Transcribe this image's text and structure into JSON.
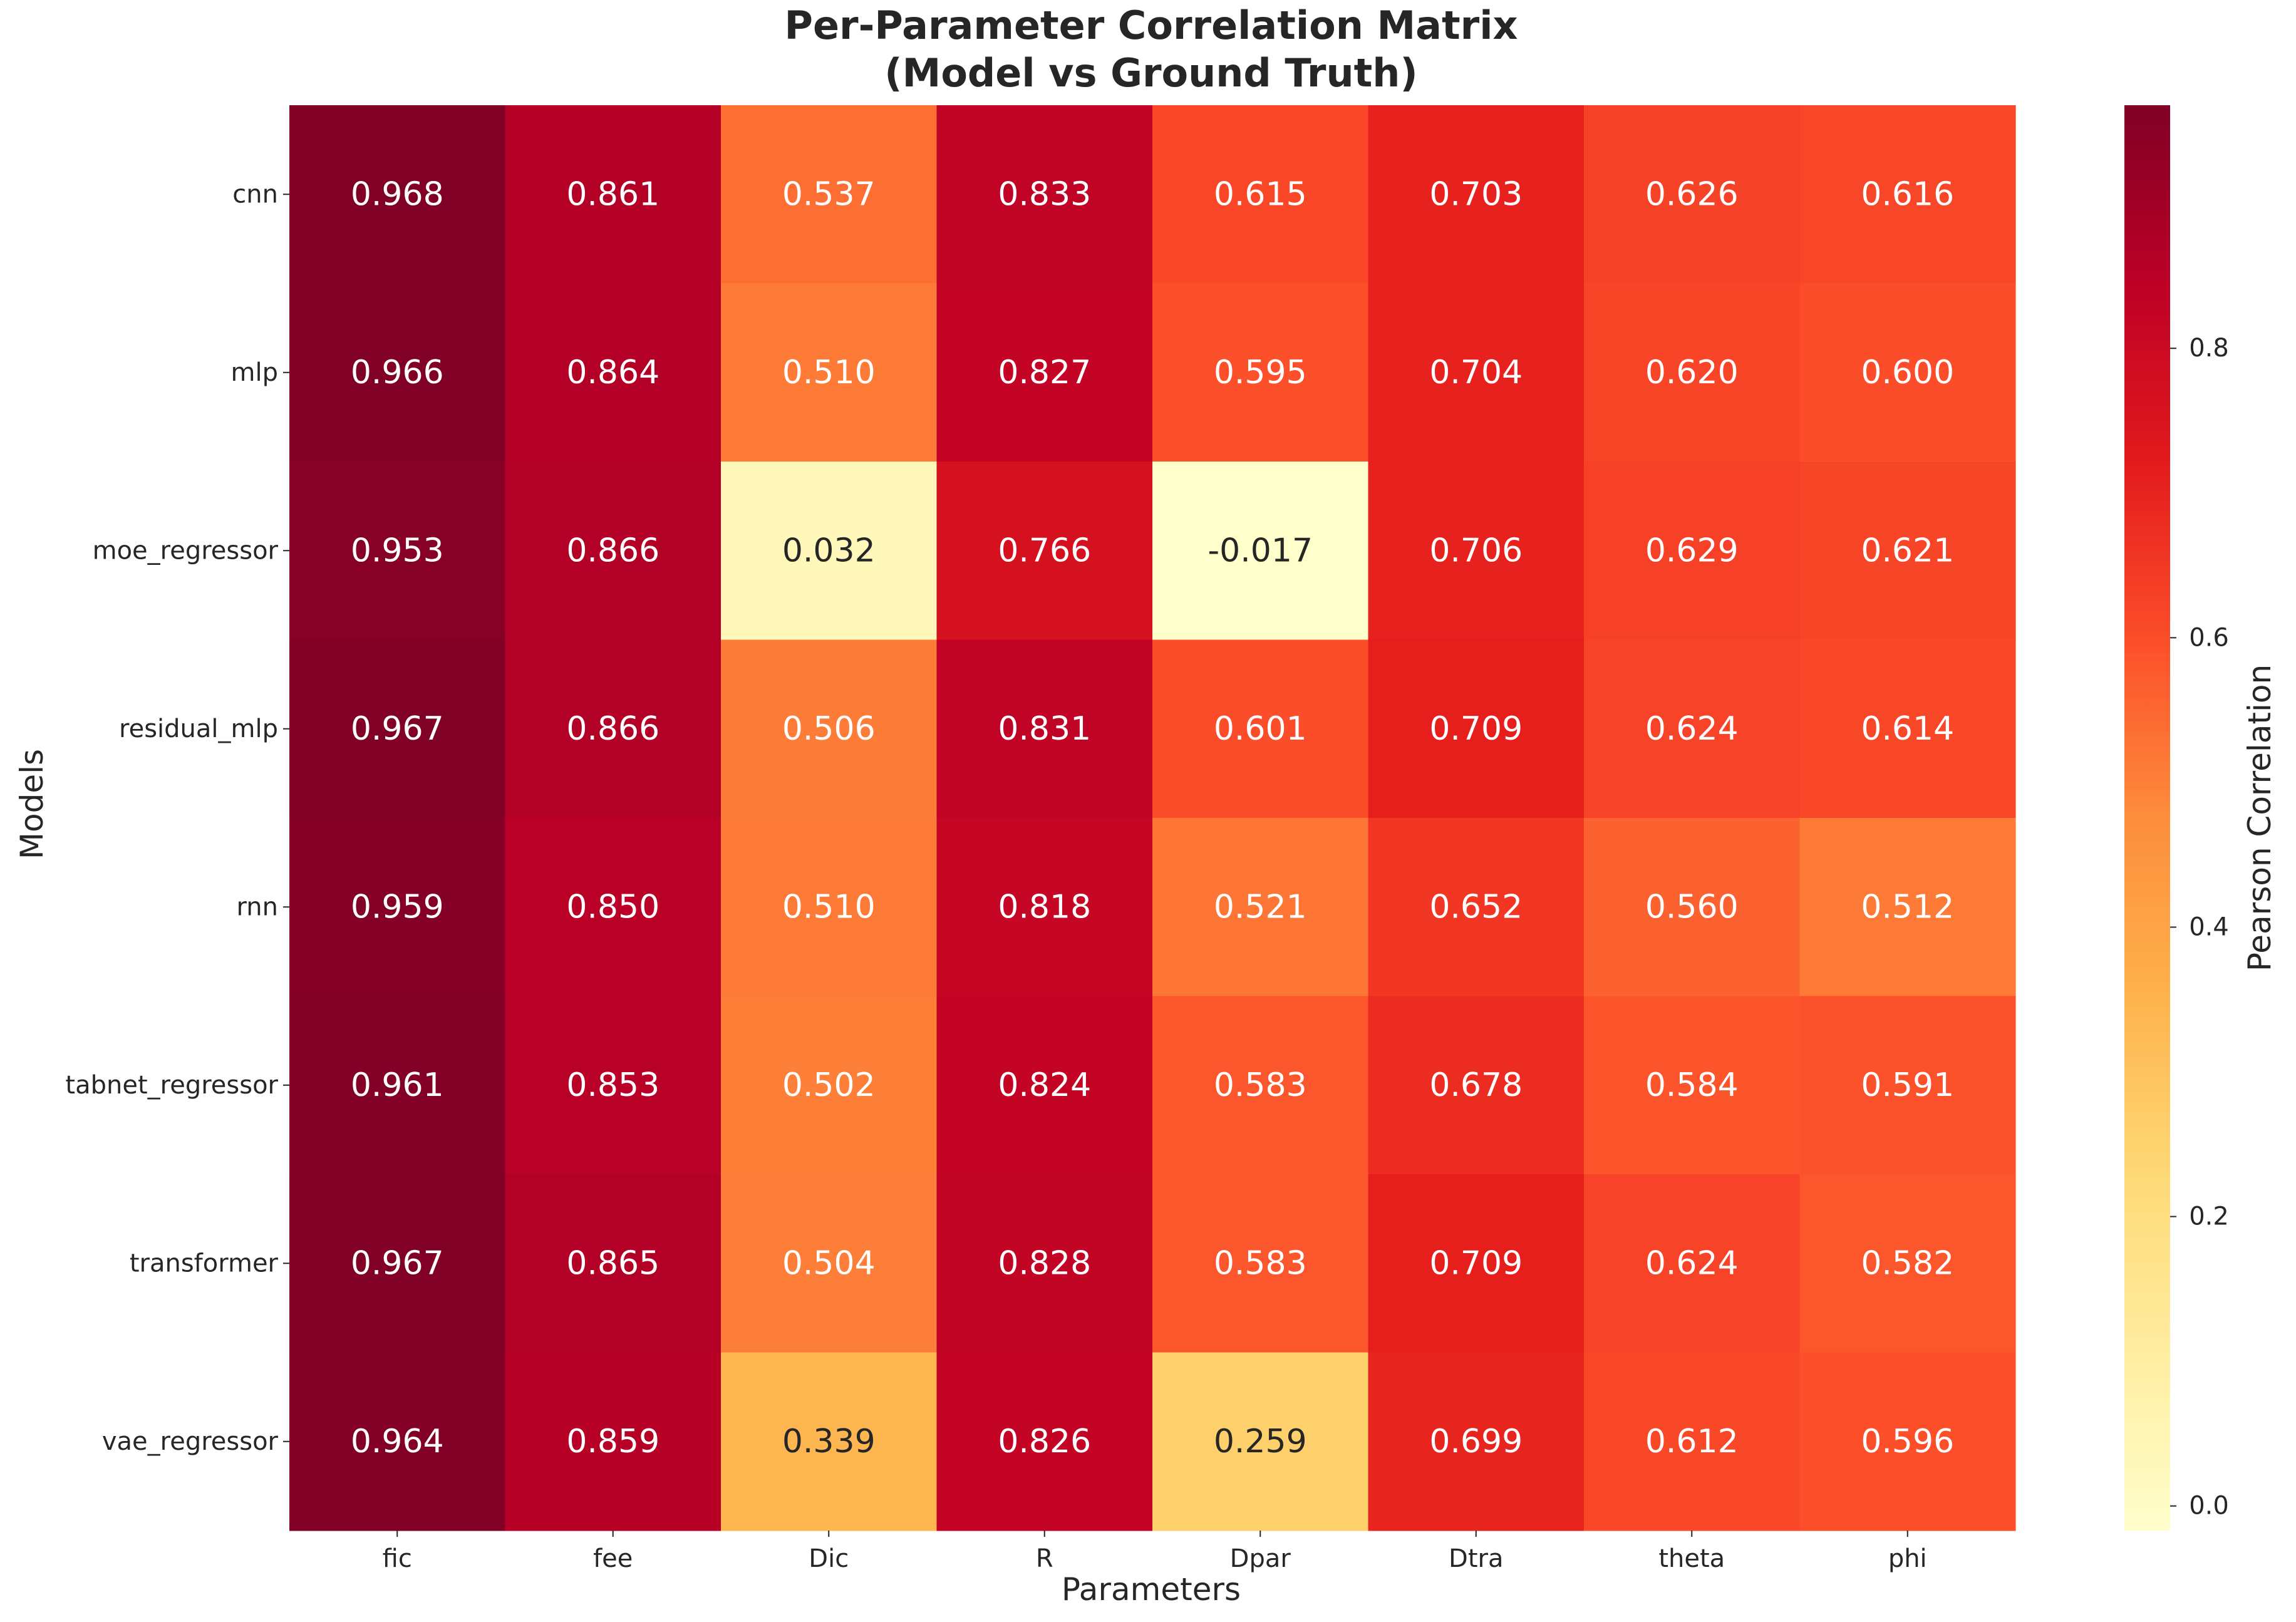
{
  "chart_data": {
    "type": "heatmap",
    "title_lines": [
      "Per-Parameter Correlation Matrix",
      "(Model vs Ground Truth)"
    ],
    "xlabel": "Parameters",
    "ylabel": "Models",
    "x_categories": [
      "fic",
      "fee",
      "Dic",
      "R",
      "Dpar",
      "Dtra",
      "theta",
      "phi"
    ],
    "y_categories": [
      "cnn",
      "mlp",
      "moe_regressor",
      "residual_mlp",
      "rnn",
      "tabnet_regressor",
      "transformer",
      "vae_regressor"
    ],
    "values": [
      [
        0.968,
        0.861,
        0.537,
        0.833,
        0.615,
        0.703,
        0.626,
        0.616
      ],
      [
        0.966,
        0.864,
        0.51,
        0.827,
        0.595,
        0.704,
        0.62,
        0.6
      ],
      [
        0.953,
        0.866,
        0.032,
        0.766,
        -0.017,
        0.706,
        0.629,
        0.621
      ],
      [
        0.967,
        0.866,
        0.506,
        0.831,
        0.601,
        0.709,
        0.624,
        0.614
      ],
      [
        0.959,
        0.85,
        0.51,
        0.818,
        0.521,
        0.652,
        0.56,
        0.512
      ],
      [
        0.961,
        0.853,
        0.502,
        0.824,
        0.583,
        0.678,
        0.584,
        0.591
      ],
      [
        0.967,
        0.865,
        0.504,
        0.828,
        0.583,
        0.709,
        0.624,
        0.582
      ],
      [
        0.964,
        0.859,
        0.339,
        0.826,
        0.259,
        0.699,
        0.612,
        0.596
      ]
    ],
    "value_labels": [
      [
        "0.968",
        "0.861",
        "0.537",
        "0.833",
        "0.615",
        "0.703",
        "0.626",
        "0.616"
      ],
      [
        "0.966",
        "0.864",
        "0.510",
        "0.827",
        "0.595",
        "0.704",
        "0.620",
        "0.600"
      ],
      [
        "0.953",
        "0.866",
        "0.032",
        "0.766",
        "-0.017",
        "0.706",
        "0.629",
        "0.621"
      ],
      [
        "0.967",
        "0.866",
        "0.506",
        "0.831",
        "0.601",
        "0.709",
        "0.624",
        "0.614"
      ],
      [
        "0.959",
        "0.850",
        "0.510",
        "0.818",
        "0.521",
        "0.652",
        "0.560",
        "0.512"
      ],
      [
        "0.961",
        "0.853",
        "0.502",
        "0.824",
        "0.583",
        "0.678",
        "0.584",
        "0.591"
      ],
      [
        "0.967",
        "0.865",
        "0.504",
        "0.828",
        "0.583",
        "0.709",
        "0.624",
        "0.582"
      ],
      [
        "0.964",
        "0.859",
        "0.339",
        "0.826",
        "0.259",
        "0.699",
        "0.612",
        "0.596"
      ]
    ],
    "colormap": "YlOrRd",
    "vmin": -0.017,
    "vmax": 0.968,
    "colorbar": {
      "label": "Pearson Correlation",
      "ticks": [
        0.0,
        0.2,
        0.4,
        0.6,
        0.8
      ],
      "tick_labels": [
        "0.0",
        "0.2",
        "0.4",
        "0.6",
        "0.8"
      ]
    },
    "grid": false
  }
}
